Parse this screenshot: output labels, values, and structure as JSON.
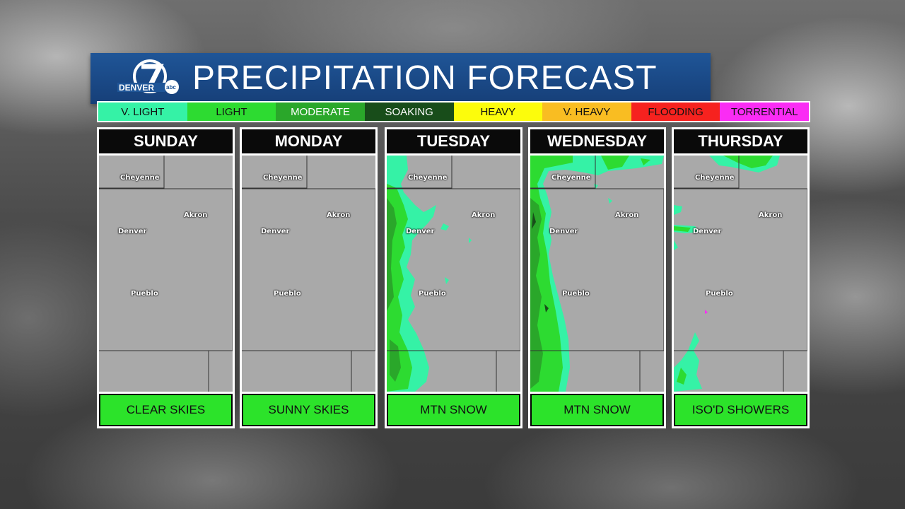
{
  "header": {
    "title": "PRECIPITATION FORECAST",
    "logo": {
      "number": "7",
      "text_main": "DENVER",
      "text_sub": "abc"
    },
    "bg_color": "#1a4c8c"
  },
  "legend": [
    {
      "label": "V. LIGHT",
      "color": "#35f2a6"
    },
    {
      "label": "LIGHT",
      "color": "#2ddb31"
    },
    {
      "label": "MODERATE",
      "color": "#2aa72a"
    },
    {
      "label": "SOAKING",
      "color": "#184d1a"
    },
    {
      "label": "HEAVY",
      "color": "#fcfc0c"
    },
    {
      "label": "V. HEAVY",
      "color": "#f9bd22"
    },
    {
      "label": "FLOODING",
      "color": "#f6221f"
    },
    {
      "label": "TORRENTIAL",
      "color": "#fa2cf4"
    }
  ],
  "days": [
    {
      "name": "SUNDAY",
      "condition": "CLEAR SKIES"
    },
    {
      "name": "MONDAY",
      "condition": "SUNNY SKIES"
    },
    {
      "name": "TUESDAY",
      "condition": "MTN SNOW"
    },
    {
      "name": "WEDNESDAY",
      "condition": "MTN SNOW"
    },
    {
      "name": "THURSDAY",
      "condition": "ISO'D SHOWERS"
    }
  ],
  "cities": {
    "cheyenne": "Cheyenne",
    "akron": "Akron",
    "denver": "Denver",
    "pueblo": "Pueblo"
  }
}
